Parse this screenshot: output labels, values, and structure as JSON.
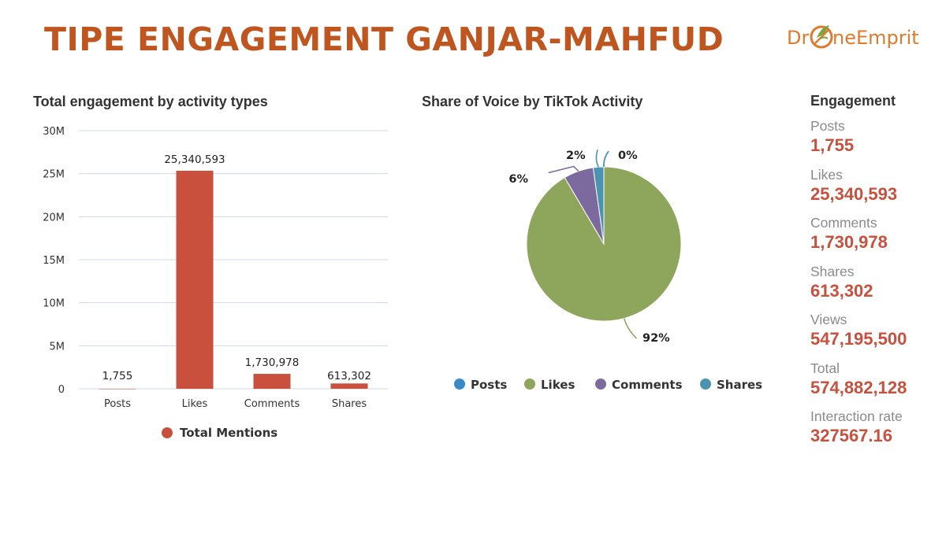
{
  "title": "TIPE ENGAGEMENT GANJAR-MAHFUD",
  "logo": {
    "text_left": "Dr",
    "text_right": "neEmprit"
  },
  "colors": {
    "title": "#C0561F",
    "bar": "#C9503D",
    "value_red": "#C9503D",
    "grid": "#cfd8e6",
    "posts": "#3A8AC7",
    "likes": "#8DA65C",
    "comments": "#7C6A9E",
    "shares": "#4B93B0"
  },
  "chart_data": [
    {
      "type": "bar",
      "title": "Total engagement by activity types",
      "categories": [
        "Posts",
        "Likes",
        "Comments",
        "Shares"
      ],
      "series": [
        {
          "name": "Total Mentions",
          "values": [
            1755,
            25340593,
            1730978,
            613302
          ]
        }
      ],
      "data_labels": [
        "1,755",
        "25,340,593",
        "1,730,978",
        "613,302"
      ],
      "y_ticks": [
        0,
        5000000,
        10000000,
        15000000,
        20000000,
        25000000,
        30000000
      ],
      "y_tick_labels": [
        "0",
        "5M",
        "10M",
        "15M",
        "20M",
        "25M",
        "30M"
      ],
      "ylim": [
        0,
        30000000
      ],
      "grid": true,
      "legend": "bottom"
    },
    {
      "type": "pie",
      "title": "Share of Voice by TikTok Activity",
      "categories": [
        "Posts",
        "Likes",
        "Comments",
        "Shares"
      ],
      "values": [
        1755,
        25340593,
        1730978,
        613302
      ],
      "pct_labels": [
        "0%",
        "92%",
        "6%",
        "2%"
      ],
      "legend": "bottom"
    }
  ],
  "stats": {
    "title": "Engagement",
    "items": [
      {
        "label": "Posts",
        "value": "1,755"
      },
      {
        "label": "Likes",
        "value": "25,340,593"
      },
      {
        "label": "Comments",
        "value": "1,730,978"
      },
      {
        "label": "Shares",
        "value": "613,302"
      },
      {
        "label": "Views",
        "value": "547,195,500"
      },
      {
        "label": "Total",
        "value": "574,882,128"
      },
      {
        "label": "Interaction rate",
        "value": "327567.16"
      }
    ]
  }
}
